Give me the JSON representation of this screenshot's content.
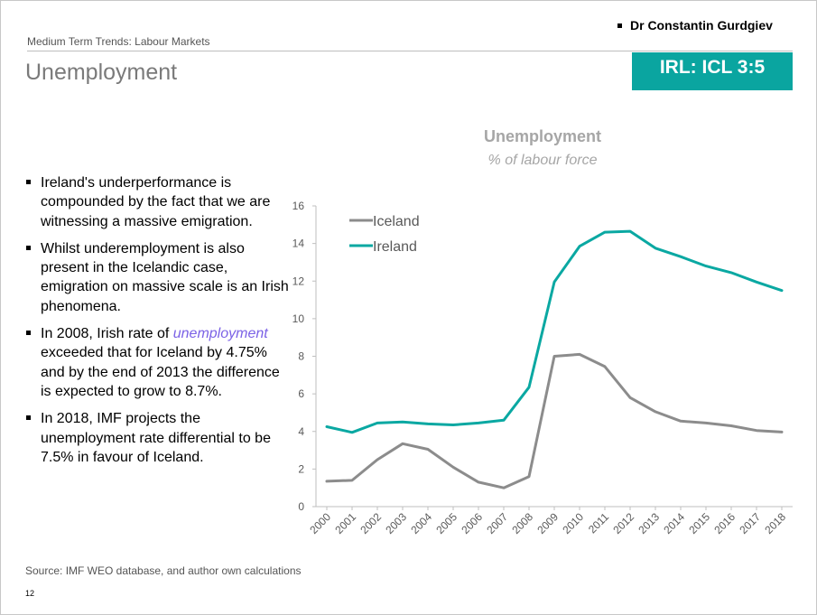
{
  "header": {
    "author": "Dr Constantin Gurdgiev",
    "section": "Medium Term Trends: Labour Markets",
    "title": "Unemployment",
    "score": "IRL: ICL 3:5"
  },
  "bullets": [
    {
      "text": "Ireland's underperformance is compounded by the fact that we are witnessing a massive emigration."
    },
    {
      "text": "Whilst underemployment is also present in the Icelandic case, emigration on massive scale is an Irish phenomena."
    },
    {
      "pre": "In 2008, Irish rate of ",
      "em": "unemployment",
      "post": " exceeded that for Iceland by 4.75% and by the end of 2013 the difference is expected to grow to 8.7%."
    },
    {
      "text": "In 2018, IMF projects the unemployment rate differential to be 7.5% in favour of Iceland."
    }
  ],
  "footer": {
    "source": "Source: IMF WEO database, and author own calculations",
    "page_number": "12"
  },
  "colors": {
    "accent": "#0aa5a0",
    "iceland": "#8c8c8c",
    "ireland": "#0aa8a2",
    "chart_title": "#a6a6a6"
  },
  "chart_data": {
    "type": "line",
    "title": "Unemployment",
    "subtitle": "% of labour force",
    "xlabel": "",
    "ylabel": "",
    "x": [
      "2000",
      "2001",
      "2002",
      "2003",
      "2004",
      "2005",
      "2006",
      "2007",
      "2008",
      "2009",
      "2010",
      "2011",
      "2012",
      "2013",
      "2014",
      "2015",
      "2016",
      "2017",
      "2018"
    ],
    "ylim": [
      0,
      16
    ],
    "yticks": [
      0,
      2,
      4,
      6,
      8,
      10,
      12,
      14,
      16
    ],
    "legend": "top-left",
    "series": [
      {
        "name": "Iceland",
        "color": "#8c8c8c",
        "values": [
          1.35,
          1.4,
          2.5,
          3.35,
          3.05,
          2.1,
          1.3,
          1.0,
          1.6,
          8.0,
          8.1,
          7.45,
          5.8,
          5.05,
          4.55,
          4.45,
          4.3,
          4.05,
          3.97
        ]
      },
      {
        "name": "Ireland",
        "color": "#0aa8a2",
        "values": [
          4.25,
          3.95,
          4.45,
          4.5,
          4.4,
          4.35,
          4.45,
          4.6,
          6.35,
          11.95,
          13.85,
          14.6,
          14.65,
          13.75,
          13.3,
          12.8,
          12.45,
          11.95,
          11.5
        ]
      }
    ]
  }
}
